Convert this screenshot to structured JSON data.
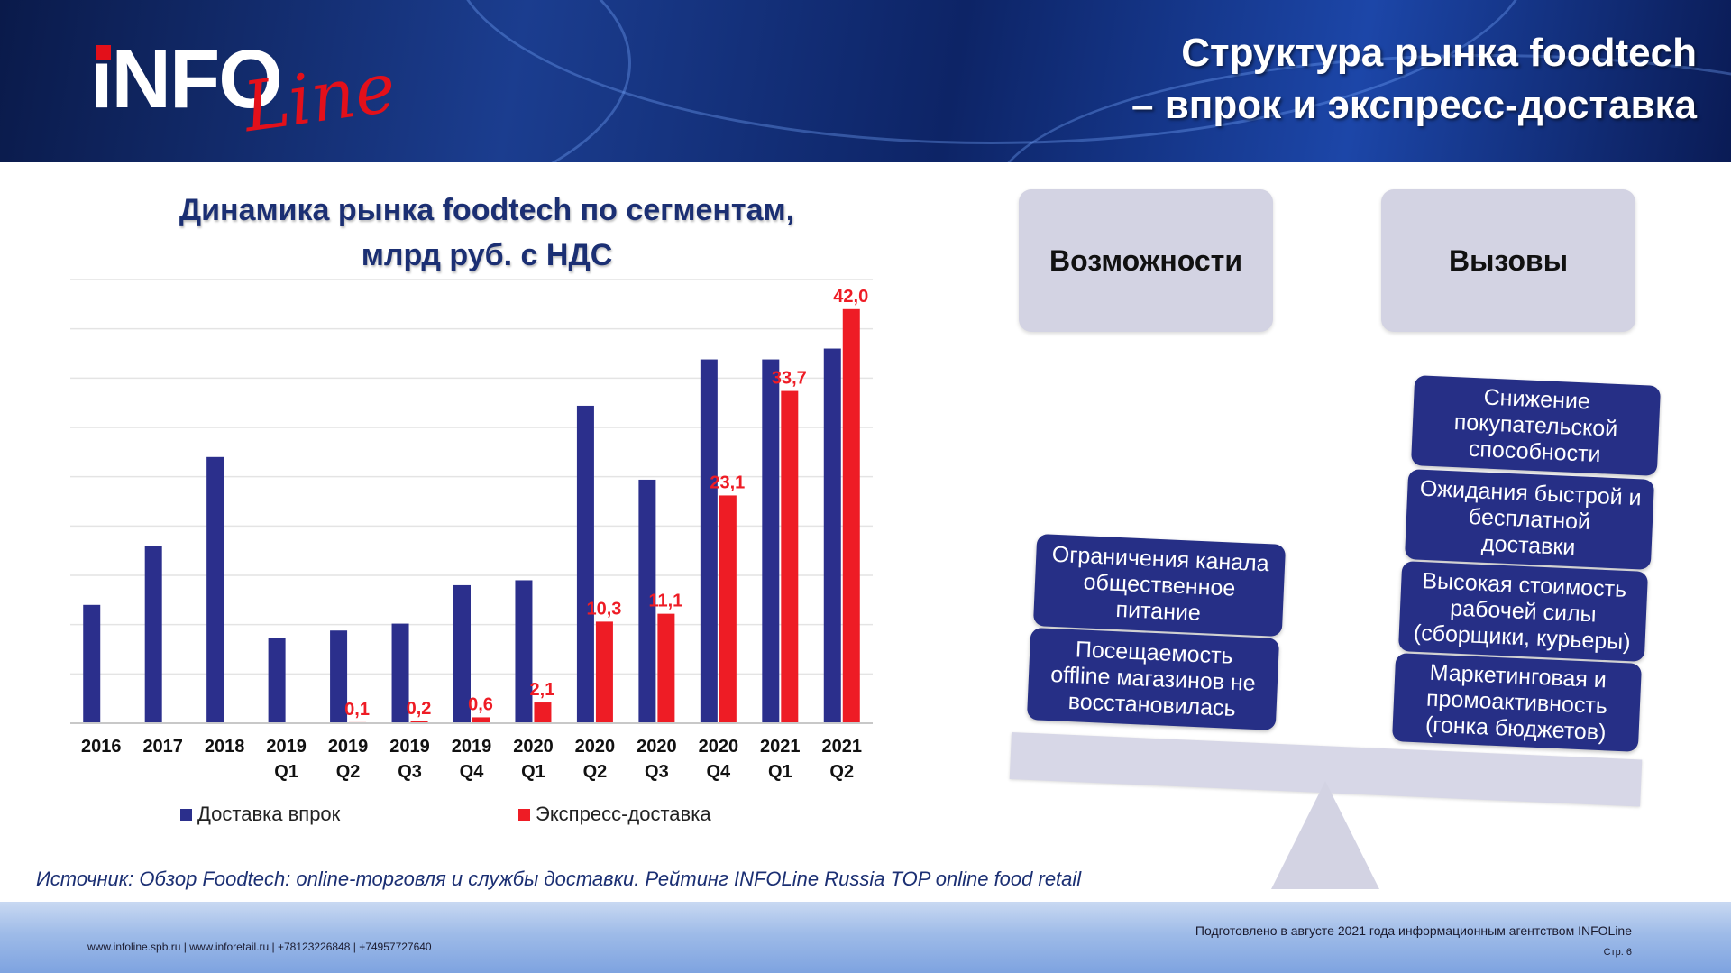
{
  "header": {
    "logo_text": "INFOLine",
    "title_line1": "Структура рынка foodtech",
    "title_line2": "– впрок и экспресс-доставка"
  },
  "chart_data": {
    "type": "bar",
    "title_line1": "Динамика рынка foodtech по сегментам,",
    "title_line2": "млрд руб. с НДС",
    "categories": [
      [
        "2016"
      ],
      [
        "2017"
      ],
      [
        "2018"
      ],
      [
        "2019",
        "Q1"
      ],
      [
        "2019",
        "Q2"
      ],
      [
        "2019",
        "Q3"
      ],
      [
        "2019",
        "Q4"
      ],
      [
        "2020",
        "Q1"
      ],
      [
        "2020",
        "Q2"
      ],
      [
        "2020",
        "Q3"
      ],
      [
        "2020",
        "Q4"
      ],
      [
        "2021",
        "Q1"
      ],
      [
        "2021",
        "Q2"
      ]
    ],
    "ylim": [
      0,
      45
    ],
    "grid": true,
    "legend_position": "bottom",
    "series": [
      {
        "name": "Доставка впрок",
        "color": "#2b2f8c",
        "values": [
          12.0,
          18.0,
          27.0,
          8.6,
          9.4,
          10.1,
          14.0,
          14.5,
          32.2,
          24.7,
          36.9,
          36.9,
          38.0
        ],
        "labels": [
          "",
          "",
          "",
          "",
          "",
          "",
          "",
          "",
          "",
          "",
          "",
          "",
          ""
        ]
      },
      {
        "name": "Экспресс-доставка",
        "color": "#ee1c25",
        "values": [
          0,
          0,
          0,
          0,
          0.1,
          0.2,
          0.6,
          2.1,
          10.3,
          11.1,
          23.1,
          33.7,
          42.0
        ],
        "labels": [
          "",
          "",
          "",
          "",
          "0,1",
          "0,2",
          "0,6",
          "2,1",
          "10,3",
          "11,1",
          "23,1",
          "33,7",
          "42,0"
        ]
      }
    ]
  },
  "source": "Источник: Обзор Foodtech: online-торговля и службы доставки. Рейтинг INFOLine Russia TOP online food retail",
  "diagram": {
    "opportunities_title": "Возможности",
    "challenges_title": "Вызовы",
    "opportunities": [
      "Ограничения канала\nобщественное\nпитание",
      "Посещаемость\noffline магазинов не\nвосстановилась"
    ],
    "challenges": [
      "Снижение\nпокупательской\nспособности",
      "Ожидания быстрой и\nбесплатной\nдоставки",
      "Высокая стоимость\nрабочей силы\n(сборщики, курьеры)",
      "Маркетинговая и\nпромоактивность\n(гонка бюджетов)"
    ]
  },
  "footer": {
    "contacts": "www.infoline.spb.ru | www.inforetail.ru | +78123226848 | +74957727640",
    "prepared": "Подготовлено в августе 2021 года информационным агентством INFOLine",
    "page": "Стр. 6"
  }
}
